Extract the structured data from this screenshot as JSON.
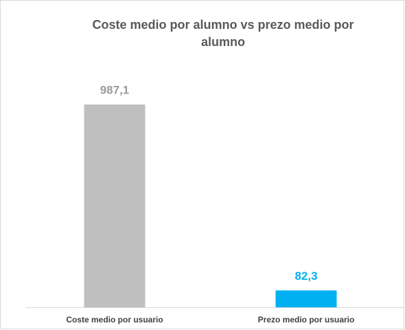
{
  "chart_data": {
    "type": "bar",
    "title": "Coste medio por alumno vs prezo medio por alumno",
    "categories": [
      "Coste medio por usuario",
      "Prezo medio por usuario"
    ],
    "values": [
      987.1,
      82.3
    ],
    "value_labels": [
      "987,1",
      "82,3"
    ],
    "colors": [
      "#bfbfbf",
      "#00b0f0"
    ]
  }
}
